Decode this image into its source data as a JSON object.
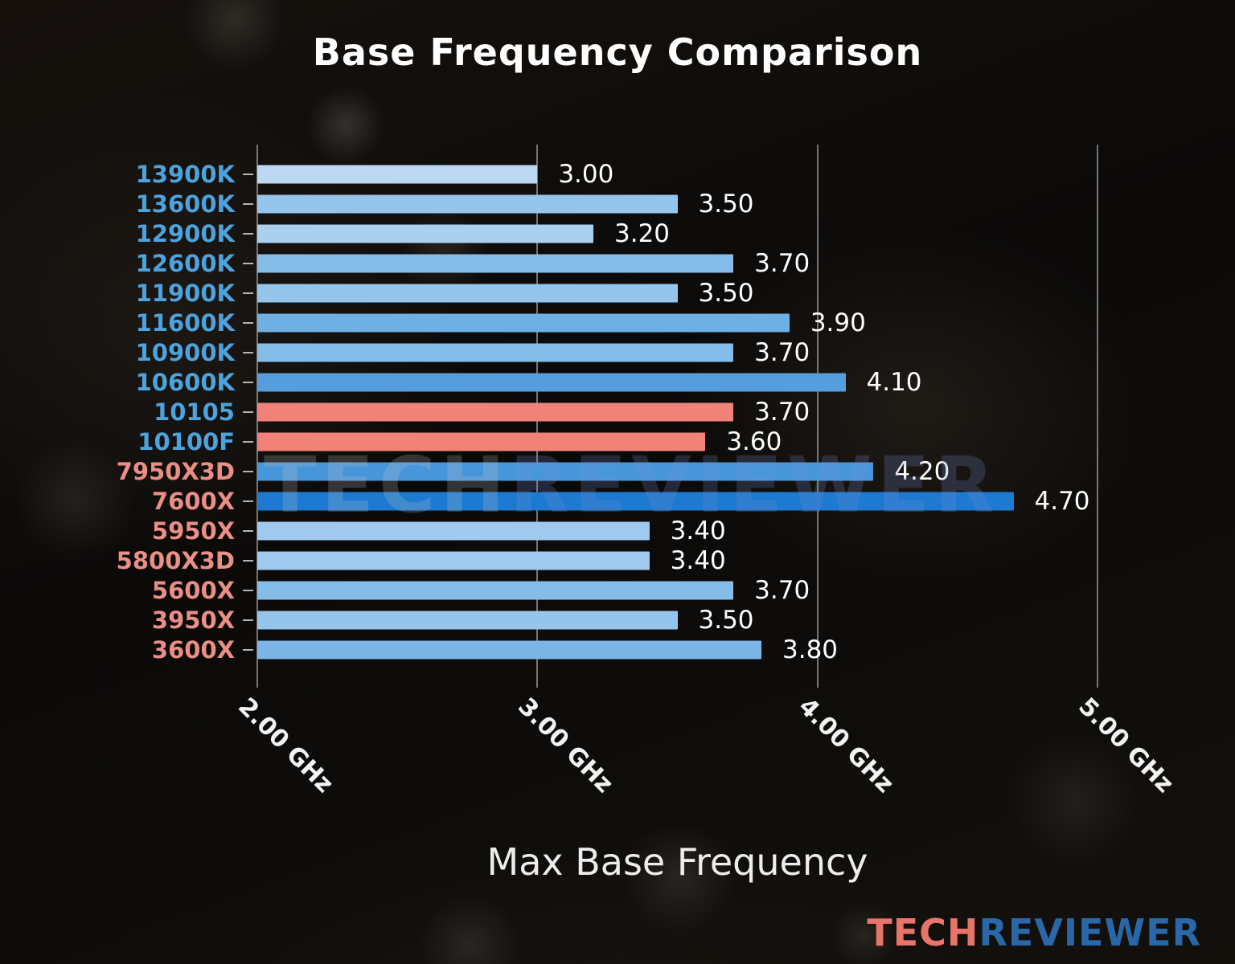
{
  "title": "Base Frequency Comparison",
  "chart_data": {
    "type": "bar",
    "orientation": "horizontal",
    "title": "Base Frequency Comparison",
    "xlabel": "Max Base Frequency",
    "xlim": [
      2.0,
      5.0
    ],
    "xticks": [
      2.0,
      3.0,
      4.0,
      5.0
    ],
    "xtick_labels": [
      "2.00 GHz",
      "3.00 GHz",
      "4.00 GHz",
      "5.00 GHz"
    ],
    "grid": true,
    "categories": [
      "13900K",
      "13600K",
      "12900K",
      "12600K",
      "11900K",
      "11600K",
      "10900K",
      "10600K",
      "10105",
      "10100F",
      "7950X3D",
      "7600X",
      "5950X",
      "5800X3D",
      "5600X",
      "3950X",
      "3600X"
    ],
    "values": [
      3.0,
      3.5,
      3.2,
      3.7,
      3.5,
      3.9,
      3.7,
      4.1,
      3.7,
      3.6,
      4.2,
      4.7,
      3.4,
      3.4,
      3.7,
      3.5,
      3.8
    ],
    "value_labels": [
      "3.00",
      "3.50",
      "3.20",
      "3.70",
      "3.50",
      "3.90",
      "3.70",
      "4.10",
      "3.70",
      "3.60",
      "4.20",
      "4.70",
      "3.40",
      "3.40",
      "3.70",
      "3.50",
      "3.80"
    ],
    "bar_colors": [
      "#bcd8f2",
      "#96c5ec",
      "#abd0ee",
      "#86bce8",
      "#96c5ec",
      "#6fb0e4",
      "#86bce8",
      "#559ede",
      "#f0827a",
      "#f0827a",
      "#4896da",
      "#1d7ad0",
      "#9fcaed",
      "#9fcaed",
      "#86bce8",
      "#96c5ec",
      "#7bb6e6"
    ],
    "label_colors": [
      "#4da3dd",
      "#4da3dd",
      "#4da3dd",
      "#4da3dd",
      "#4da3dd",
      "#4da3dd",
      "#4da3dd",
      "#4da3dd",
      "#4da3dd",
      "#4da3dd",
      "#ea8f86",
      "#ea8f86",
      "#ea8f86",
      "#ea8f86",
      "#ea8f86",
      "#ea8f86",
      "#ea8f86"
    ],
    "gridline_color": "rgba(205,205,205,0.55)"
  },
  "watermark": {
    "tech": "TECH",
    "reviewer": "REVIEWER",
    "tech_color": "#c6c6ca",
    "reviewer_color": "#7890d8"
  },
  "logo": {
    "tech": "TECH",
    "reviewer": "REVIEWER",
    "tech_color": "#e8756b",
    "reviewer_color": "#2a67a8"
  }
}
